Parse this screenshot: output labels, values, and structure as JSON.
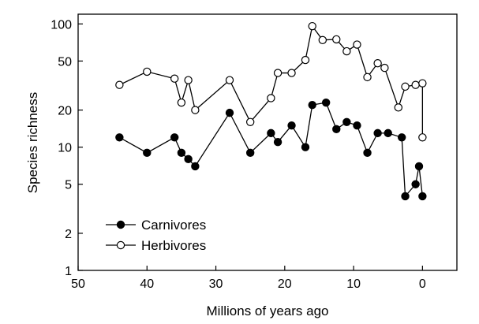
{
  "chart_data": {
    "type": "line",
    "xlabel": "Millions of years ago",
    "ylabel": "Species richness",
    "xlim": [
      50,
      -5
    ],
    "ylim": [
      1,
      120
    ],
    "yscale": "log",
    "xticks": [
      50,
      40,
      30,
      20,
      10,
      0
    ],
    "xtick_labels": [
      "50",
      "40",
      "30",
      "20",
      "10",
      "0"
    ],
    "yticks": [
      1,
      2,
      5,
      10,
      20,
      50,
      100
    ],
    "ytick_labels": [
      "1",
      "2",
      "5",
      "10",
      "20",
      "50",
      "100"
    ],
    "grid": false,
    "legend_position": "bottom-left",
    "series": [
      {
        "name": "Carnivores",
        "marker": "filled-circle",
        "color": "#000000",
        "x": [
          44,
          40,
          36,
          35,
          34,
          33,
          28,
          25,
          22,
          21,
          19,
          17,
          16,
          14,
          12.5,
          11,
          9.5,
          8,
          6.5,
          5,
          3,
          2.5,
          1,
          0.5,
          0
        ],
        "y": [
          12,
          9,
          12,
          9,
          8,
          7,
          19,
          9,
          13,
          11,
          15,
          10,
          22,
          23,
          14,
          16,
          15,
          9,
          13,
          13,
          12,
          4,
          5,
          7,
          4
        ]
      },
      {
        "name": "Herbivores",
        "marker": "open-circle",
        "color": "#000000",
        "x": [
          44,
          40,
          36,
          35,
          34,
          33,
          28,
          25,
          22,
          21,
          19,
          17,
          16,
          14.5,
          12.5,
          11,
          9.5,
          8,
          6.5,
          5.5,
          3.5,
          2.5,
          1,
          0,
          0
        ],
        "y": [
          32,
          41,
          36,
          23,
          35,
          20,
          35,
          16,
          25,
          40,
          40,
          51,
          96,
          74,
          75,
          60,
          68,
          37,
          48,
          44,
          21,
          31,
          32,
          33,
          12
        ]
      }
    ]
  }
}
